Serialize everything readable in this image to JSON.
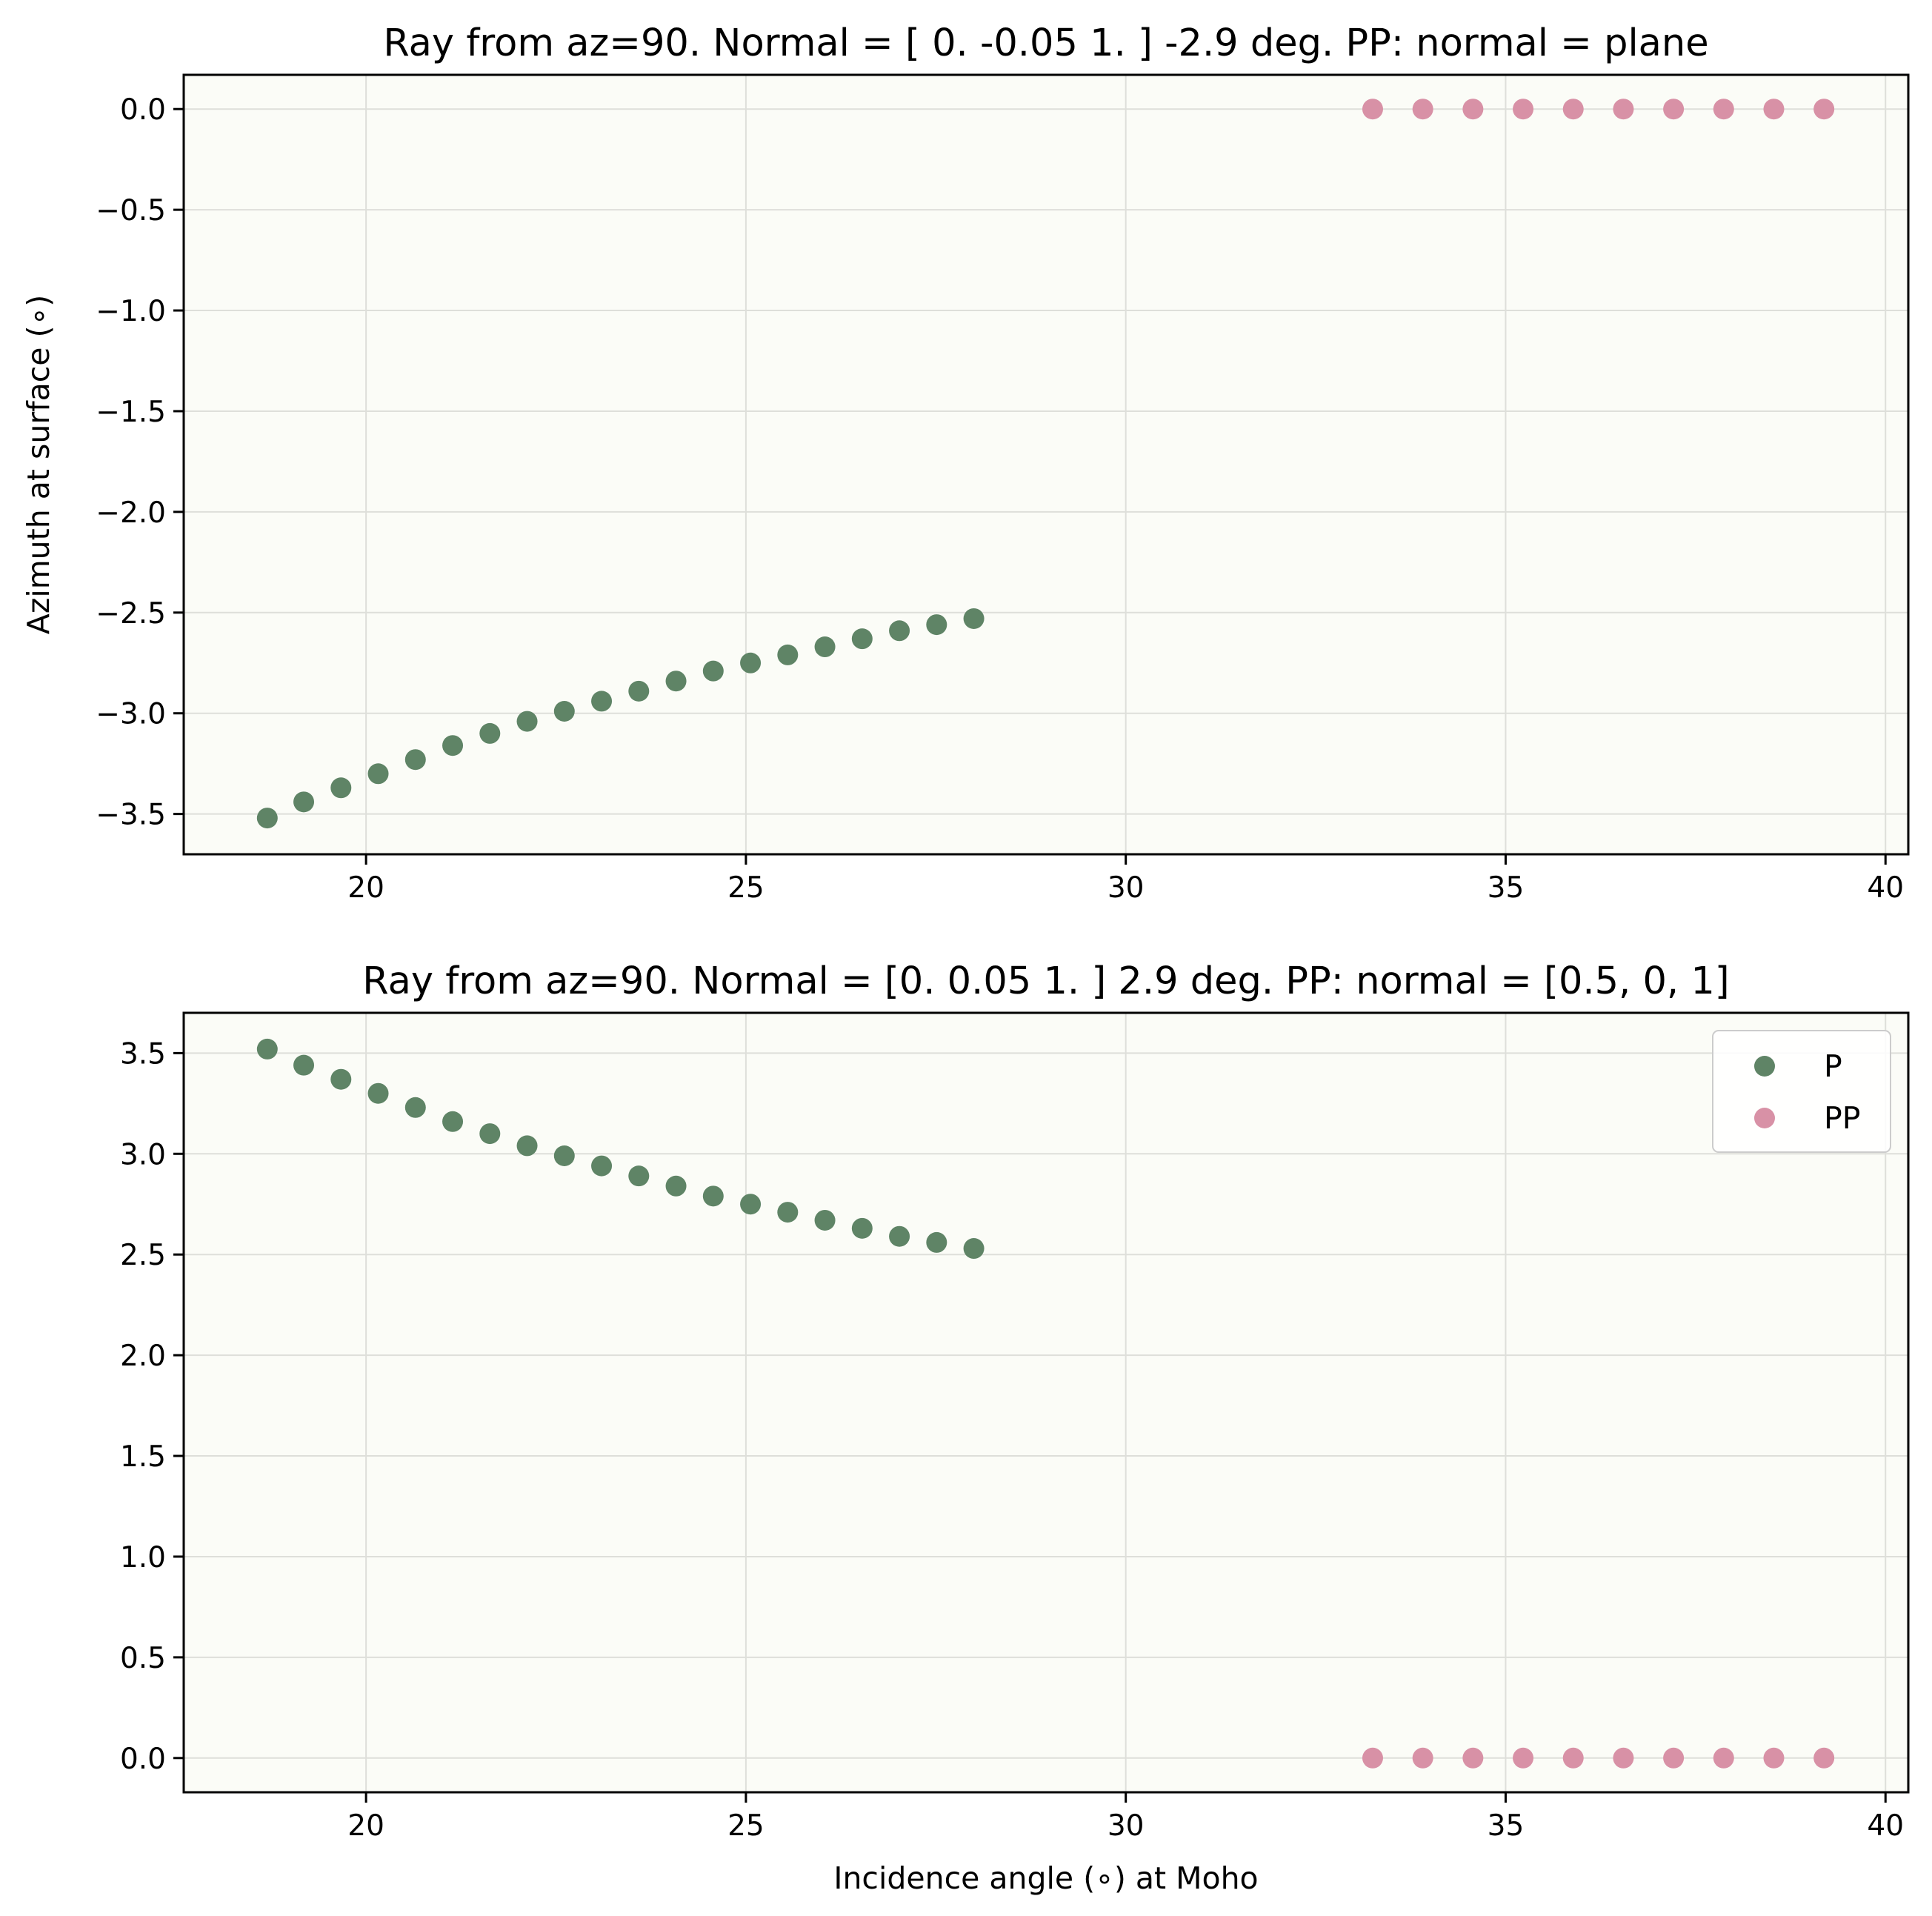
{
  "chart_data": [
    {
      "type": "scatter",
      "title": "Ray from az=90. Normal = [ 0.   -0.05  1.  ] -2.9 deg. PP: normal = plane",
      "xlabel": "",
      "ylabel": "Azimuth at surface (∘)",
      "xlim": [
        17.6,
        40.3
      ],
      "ylim": [
        -3.7,
        0.17
      ],
      "xticks": [
        20,
        25,
        30,
        35,
        40
      ],
      "yticks": [
        0.0,
        -0.5,
        -1.0,
        -1.5,
        -2.0,
        -2.5,
        -3.0,
        -3.5
      ],
      "ytick_labels": [
        "0.0",
        "−0.5",
        "−1.0",
        "−1.5",
        "−2.0",
        "−2.5",
        "−3.0",
        "−3.5"
      ],
      "grid": true,
      "legend": null,
      "series": [
        {
          "name": "P",
          "color": "#5f8466",
          "x": [
            18.7,
            19.18,
            19.67,
            20.16,
            20.65,
            21.14,
            21.63,
            22.12,
            22.61,
            23.1,
            23.59,
            24.08,
            24.57,
            25.06,
            25.55,
            26.04,
            26.53,
            27.02,
            27.51,
            28.0
          ],
          "y": [
            -3.52,
            -3.44,
            -3.37,
            -3.3,
            -3.23,
            -3.16,
            -3.1,
            -3.04,
            -2.99,
            -2.94,
            -2.89,
            -2.84,
            -2.79,
            -2.75,
            -2.71,
            -2.67,
            -2.63,
            -2.59,
            -2.56,
            -2.53
          ]
        },
        {
          "name": "PP",
          "color": "#d891a6",
          "x": [
            33.25,
            33.91,
            34.57,
            35.23,
            35.89,
            36.55,
            37.21,
            37.87,
            38.53,
            39.19
          ],
          "y": [
            0,
            0,
            0,
            0,
            0,
            0,
            0,
            0,
            0,
            0
          ]
        }
      ]
    },
    {
      "type": "scatter",
      "title": "Ray from az=90. Normal = [0.   0.05 1.  ] 2.9 deg. PP: normal = [0.5, 0, 1]",
      "xlabel": "Incidence angle (∘) at Moho",
      "ylabel": "",
      "xlim": [
        17.6,
        40.3
      ],
      "ylim": [
        -0.17,
        3.7
      ],
      "xticks": [
        20,
        25,
        30,
        35,
        40
      ],
      "yticks": [
        3.5,
        3.0,
        2.5,
        2.0,
        1.5,
        1.0,
        0.5,
        0.0
      ],
      "ytick_labels": [
        "3.5",
        "3.0",
        "2.5",
        "2.0",
        "1.5",
        "1.0",
        "0.5",
        "0.0"
      ],
      "grid": true,
      "legend": "top-right",
      "series": [
        {
          "name": "P",
          "color": "#5f8466",
          "x": [
            18.7,
            19.18,
            19.67,
            20.16,
            20.65,
            21.14,
            21.63,
            22.12,
            22.61,
            23.1,
            23.59,
            24.08,
            24.57,
            25.06,
            25.55,
            26.04,
            26.53,
            27.02,
            27.51,
            28.0
          ],
          "y": [
            3.52,
            3.44,
            3.37,
            3.3,
            3.23,
            3.16,
            3.1,
            3.04,
            2.99,
            2.94,
            2.89,
            2.84,
            2.79,
            2.75,
            2.71,
            2.67,
            2.63,
            2.59,
            2.56,
            2.53
          ]
        },
        {
          "name": "PP",
          "color": "#d891a6",
          "x": [
            33.25,
            33.91,
            34.57,
            35.23,
            35.89,
            36.55,
            37.21,
            37.87,
            38.53,
            39.19
          ],
          "y": [
            0,
            0,
            0,
            0,
            0,
            0,
            0,
            0,
            0,
            0
          ]
        }
      ]
    }
  ]
}
